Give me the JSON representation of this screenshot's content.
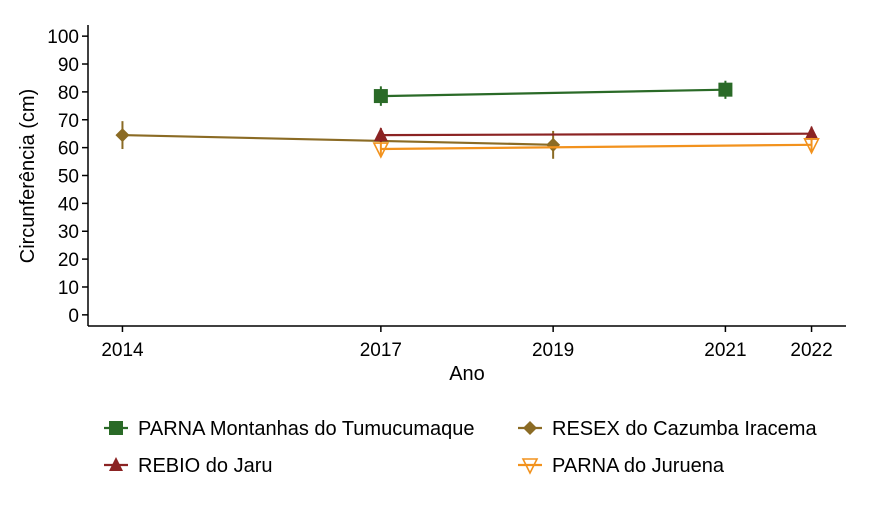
{
  "chart_data": {
    "type": "line",
    "title": "",
    "xlabel": "Ano",
    "ylabel": "Circunferência (cm)",
    "x_ticks": [
      2014,
      2017,
      2019,
      2021,
      2022
    ],
    "x_range": [
      2013.6,
      2022.4
    ],
    "y_ticks": [
      0,
      10,
      20,
      30,
      40,
      50,
      60,
      70,
      80,
      90,
      100
    ],
    "ylim": [
      -4,
      104
    ],
    "grid": false,
    "legend_position": "bottom",
    "series": [
      {
        "name": "PARNA Montanhas do Tumucumaque",
        "color": "#2a6a27",
        "marker": "filled-square",
        "points": [
          {
            "x": 2017,
            "y": 78.5,
            "err_low": 75.0,
            "err_high": 82.0
          },
          {
            "x": 2021,
            "y": 80.8,
            "err_low": 77.5,
            "err_high": 84.0
          }
        ]
      },
      {
        "name": "RESEX do Cazumba Iracema",
        "color": "#8b6b24",
        "marker": "filled-diamond",
        "points": [
          {
            "x": 2014,
            "y": 64.5,
            "err_low": 59.5,
            "err_high": 69.5
          },
          {
            "x": 2019,
            "y": 61.0,
            "err_low": 56.0,
            "err_high": 66.0
          }
        ]
      },
      {
        "name": "REBIO do Jaru",
        "color": "#8b2323",
        "marker": "filled-triangle-up",
        "points": [
          {
            "x": 2017,
            "y": 64.5,
            "err_low": 62.0,
            "err_high": 67.0
          },
          {
            "x": 2022,
            "y": 65.0,
            "err_low": 62.5,
            "err_high": 67.5
          }
        ]
      },
      {
        "name": "PARNA do Juruena",
        "color": "#f2921d",
        "marker": "open-triangle-down",
        "points": [
          {
            "x": 2017,
            "y": 59.5,
            "err_low": 57.0,
            "err_high": 62.0
          },
          {
            "x": 2022,
            "y": 61.0,
            "err_low": 58.5,
            "err_high": 63.5
          }
        ]
      }
    ]
  }
}
